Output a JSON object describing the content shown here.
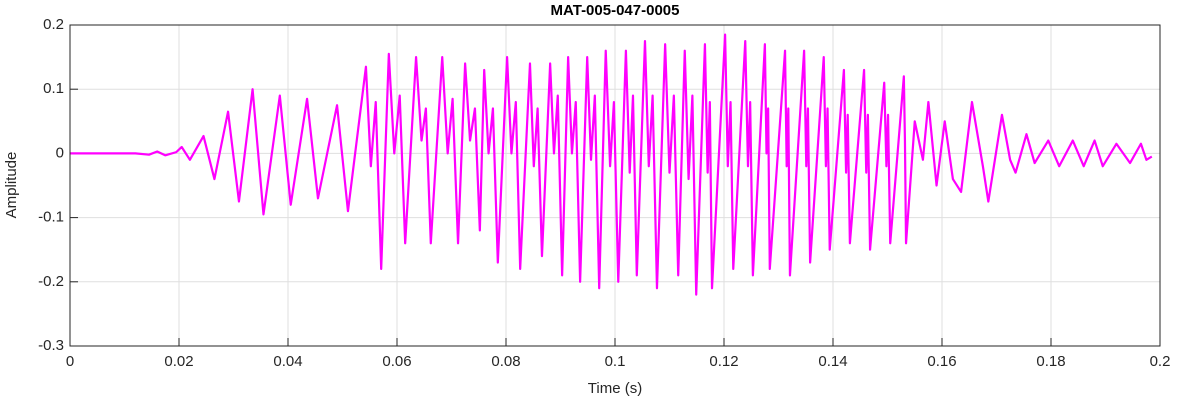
{
  "chart_data": {
    "type": "line",
    "title": "MAT-005-047-0005",
    "x_label": "Time (s)",
    "y_label": "Amplitude",
    "color": "#ff00ff",
    "grid": true,
    "xlim": [
      0,
      0.2
    ],
    "xticks": [
      0,
      0.02,
      0.04,
      0.06,
      0.08,
      0.1,
      0.12,
      0.14,
      0.16,
      0.18,
      0.2
    ],
    "ylim": [
      -0.3,
      0.2
    ],
    "yticks": [
      -0.3,
      -0.2,
      -0.1,
      0,
      0.1,
      0.2
    ],
    "x": [
      0,
      0.012,
      0.0145,
      0.016,
      0.0175,
      0.0195,
      0.0205,
      0.022,
      0.0245,
      0.0265,
      0.029,
      0.031,
      0.0335,
      0.0355,
      0.0385,
      0.0405,
      0.0435,
      0.0455,
      0.049,
      0.051,
      0.0543,
      0.0552,
      0.0561,
      0.0571,
      0.0585,
      0.0595,
      0.0605,
      0.0615,
      0.0635,
      0.0645,
      0.0653,
      0.0662,
      0.0683,
      0.0693,
      0.0702,
      0.0712,
      0.0725,
      0.0734,
      0.0743,
      0.0752,
      0.076,
      0.0768,
      0.0776,
      0.0785,
      0.0802,
      0.081,
      0.0818,
      0.0826,
      0.0844,
      0.0851,
      0.0858,
      0.0866,
      0.0881,
      0.0888,
      0.0895,
      0.0903,
      0.0914,
      0.0921,
      0.0928,
      0.0936,
      0.0949,
      0.0956,
      0.0963,
      0.0971,
      0.0983,
      0.0991,
      0.0998,
      0.1006,
      0.102,
      0.1027,
      0.1033,
      0.104,
      0.1055,
      0.1062,
      0.1069,
      0.1077,
      0.1092,
      0.11,
      0.1108,
      0.1116,
      0.1128,
      0.1135,
      0.1142,
      0.1149,
      0.1165,
      0.117,
      0.1174,
      0.1178,
      0.1202,
      0.1207,
      0.1212,
      0.1217,
      0.1239,
      0.1244,
      0.1248,
      0.1253,
      0.1275,
      0.1278,
      0.1281,
      0.1284,
      0.1312,
      0.1315,
      0.1318,
      0.1321,
      0.1347,
      0.1351,
      0.1354,
      0.1358,
      0.1383,
      0.1387,
      0.139,
      0.1394,
      0.142,
      0.1424,
      0.1427,
      0.1431,
      0.1457,
      0.1461,
      0.1464,
      0.1468,
      0.1494,
      0.1498,
      0.1501,
      0.1505,
      0.153,
      0.1532,
      0.1534,
      0.155,
      0.1565,
      0.1575,
      0.159,
      0.1605,
      0.162,
      0.1635,
      0.1655,
      0.1675,
      0.1685,
      0.171,
      0.1725,
      0.1735,
      0.1755,
      0.177,
      0.1795,
      0.1815,
      0.184,
      0.186,
      0.188,
      0.1895,
      0.192,
      0.1945,
      0.1965,
      0.1975,
      0.1985
    ],
    "values": [
      0,
      0,
      -0.002,
      0.003,
      -0.003,
      0.002,
      0.01,
      -0.01,
      0.027,
      -0.04,
      0.065,
      -0.075,
      0.1,
      -0.095,
      0.09,
      -0.08,
      0.085,
      -0.07,
      0.075,
      -0.09,
      0.135,
      -0.02,
      0.08,
      -0.18,
      0.155,
      0.0,
      0.09,
      -0.14,
      0.15,
      0.02,
      0.07,
      -0.14,
      0.15,
      0.0,
      0.085,
      -0.14,
      0.14,
      0.02,
      0.07,
      -0.12,
      0.13,
      0.0,
      0.07,
      -0.17,
      0.15,
      0.0,
      0.08,
      -0.18,
      0.14,
      -0.02,
      0.07,
      -0.16,
      0.14,
      0.0,
      0.09,
      -0.19,
      0.15,
      0.0,
      0.08,
      -0.2,
      0.15,
      -0.01,
      0.09,
      -0.21,
      0.16,
      -0.02,
      0.08,
      -0.2,
      0.16,
      -0.03,
      0.09,
      -0.19,
      0.175,
      -0.02,
      0.09,
      -0.21,
      0.17,
      -0.03,
      0.09,
      -0.19,
      0.16,
      -0.04,
      0.09,
      -0.22,
      0.17,
      -0.03,
      0.08,
      -0.21,
      0.185,
      -0.02,
      0.08,
      -0.18,
      0.175,
      -0.02,
      0.08,
      -0.19,
      0.17,
      0.0,
      0.07,
      -0.18,
      0.16,
      -0.02,
      0.07,
      -0.19,
      0.16,
      -0.02,
      0.07,
      -0.17,
      0.15,
      -0.02,
      0.07,
      -0.15,
      0.13,
      -0.03,
      0.06,
      -0.14,
      0.13,
      -0.03,
      0.06,
      -0.15,
      0.11,
      -0.02,
      0.06,
      -0.14,
      0.12,
      0.02,
      -0.14,
      0.05,
      -0.01,
      0.08,
      -0.05,
      0.05,
      -0.04,
      -0.06,
      0.08,
      -0.02,
      -0.075,
      0.06,
      -0.01,
      -0.03,
      0.03,
      -0.015,
      0.02,
      -0.02,
      0.02,
      -0.02,
      0.02,
      -0.02,
      0.015,
      -0.015,
      0.015,
      -0.01,
      -0.005
    ]
  }
}
